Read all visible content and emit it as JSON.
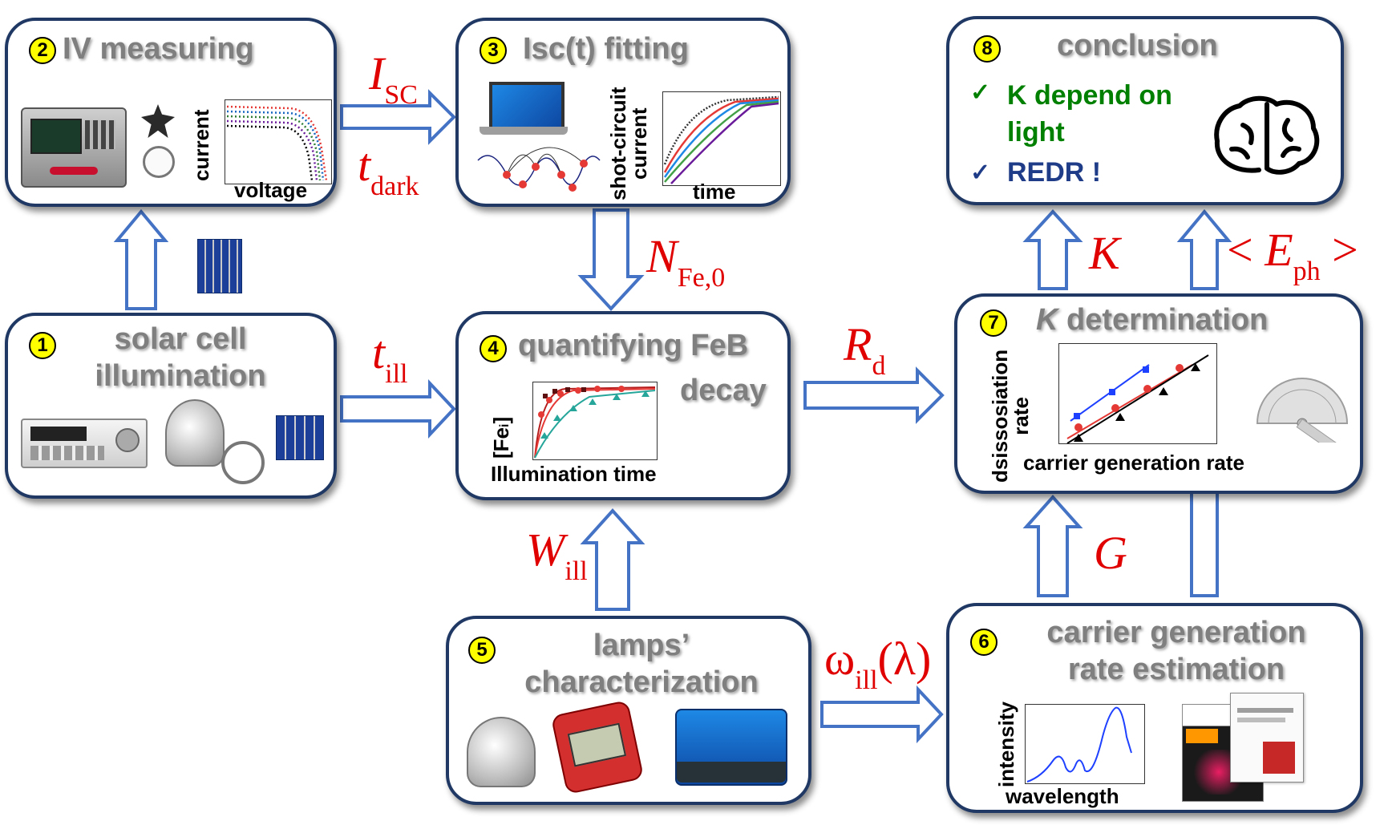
{
  "boxes": {
    "b1": {
      "num": "1",
      "title": "solar cell\nillumination"
    },
    "b2": {
      "num": "2",
      "title": "IV measuring",
      "ylabel": "current",
      "xlabel": "voltage"
    },
    "b3": {
      "num": "3",
      "title": "Isc(t) fitting",
      "ylabel": "shot-circuit\ncurrent",
      "xlabel": "time"
    },
    "b4": {
      "num": "4",
      "title_line1": "quantifying FeB",
      "title_line2": "decay",
      "ylabel": "[Fe",
      "ylabel_sub": "i",
      "ylabel_end": "]",
      "xlabel": "Illumination time"
    },
    "b5": {
      "num": "5",
      "title": "lamps’\ncharacterization"
    },
    "b6": {
      "num": "6",
      "title": "carrier generation\nrate estimation",
      "ylabel": "intensity",
      "xlabel": "wavelength"
    },
    "b7": {
      "num": "7",
      "title_k": "K",
      "title_rest": " determination",
      "ylabel": "dsissosiation\nrate",
      "xlabel": "carrier generation rate"
    },
    "b8": {
      "num": "8",
      "title": "conclusion",
      "item1": "K depend on\nlight",
      "item2": "REDR !",
      "check": "✓"
    }
  },
  "variables": {
    "isc": {
      "main": "I",
      "sub": "SC"
    },
    "tdark": {
      "main": "t",
      "sub": "dark"
    },
    "nfe": {
      "main": "N",
      "sub": "Fe,0"
    },
    "till": {
      "main": "t",
      "sub": "ill"
    },
    "rd": {
      "main": "R",
      "sub": "d"
    },
    "will": {
      "main": "W",
      "sub": "ill"
    },
    "omega": {
      "main": "ω",
      "sub": "ill",
      "tail": "(λ)"
    },
    "g": {
      "main": "G"
    },
    "k": {
      "main": "K"
    },
    "eph": {
      "open": "< ",
      "main": "E",
      "sub": "ph",
      "close": " >"
    }
  },
  "colors": {
    "border": "#1f3864",
    "arrow": "#4472c4",
    "var": "#e00000",
    "title": "#7f7f7f",
    "badge": "#ffff00",
    "green": "#008000",
    "blue": "#1f3c88"
  }
}
